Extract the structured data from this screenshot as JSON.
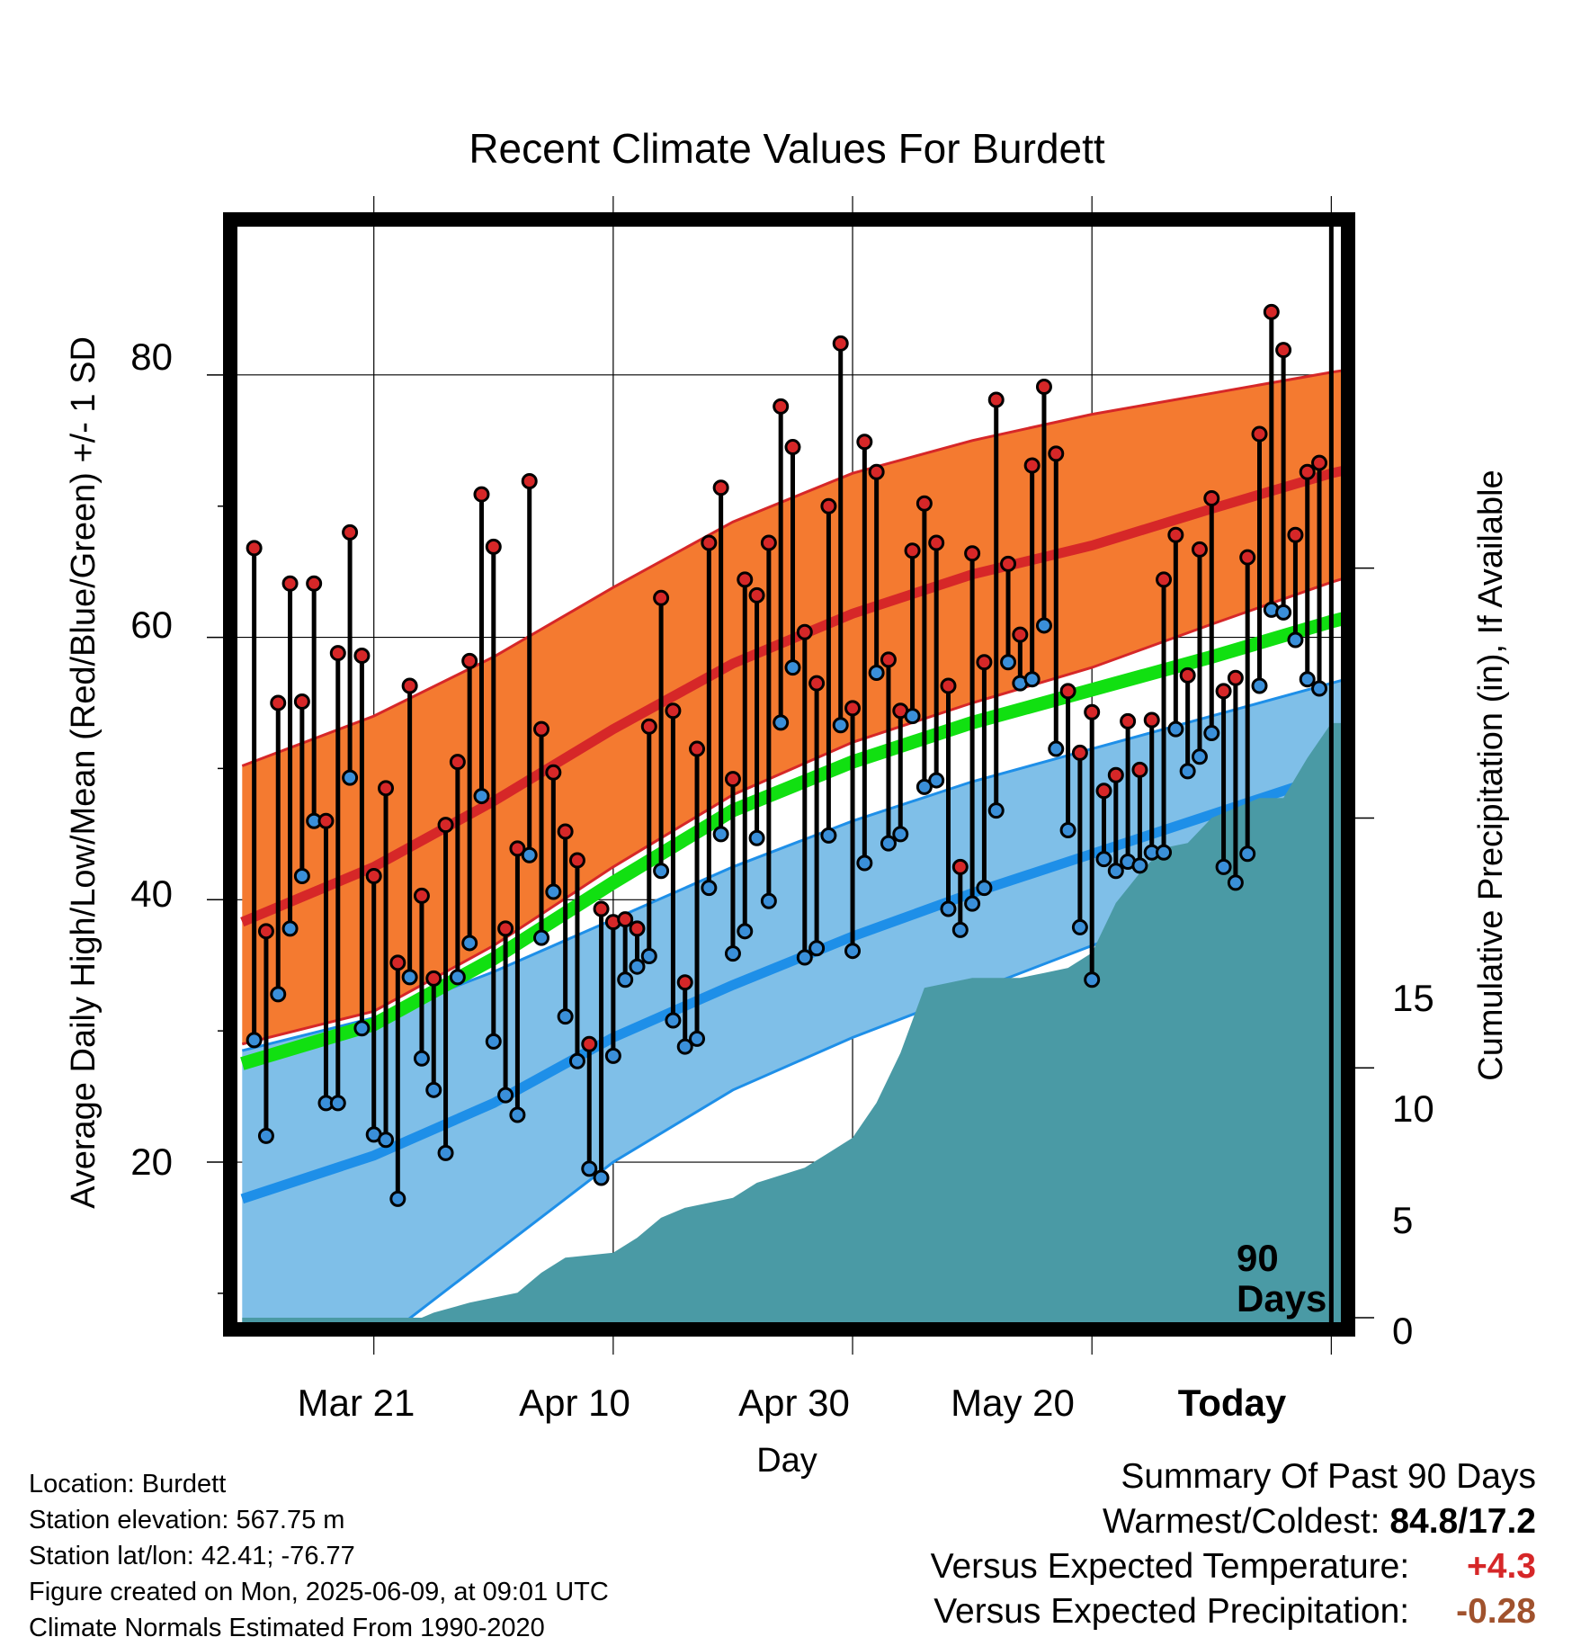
{
  "chart_data": {
    "type": "line",
    "title": "Recent Climate Values For Burdett",
    "xlabel": "Day",
    "ylabel": "Average Daily High/Low/Mean (Red/Blue/Green) +/- 1 SD",
    "y2label": "Cumulative Precipitation (in), If Available",
    "x_ticks": [
      {
        "day": 10,
        "label": "Mar 21"
      },
      {
        "day": 30,
        "label": "Apr 10"
      },
      {
        "day": 50,
        "label": "Apr 30"
      },
      {
        "day": 70,
        "label": "May 20"
      },
      {
        "day": 90,
        "label": "Today"
      }
    ],
    "y_ticks": [
      "20",
      "40",
      "60",
      "80"
    ],
    "y2_ticks": [
      "0",
      "5",
      "10",
      "15"
    ],
    "ylim": [
      7.8,
      91.3
    ],
    "y2lim": [
      0,
      18
    ],
    "xlim": [
      -1.4,
      90.8
    ],
    "today_marker_label": [
      "90",
      "Days"
    ],
    "grid": true,
    "normals": {
      "high_mean": [
        [
          -1,
          38.3
        ],
        [
          10,
          42.5
        ],
        [
          20,
          47.5
        ],
        [
          30,
          53.0
        ],
        [
          40,
          58.0
        ],
        [
          50,
          61.8
        ],
        [
          60,
          64.8
        ],
        [
          70,
          67.0
        ],
        [
          80,
          69.8
        ],
        [
          90,
          72.5
        ],
        [
          100,
          74.5
        ]
      ],
      "high_upper": [
        [
          -1,
          50.2
        ],
        [
          10,
          54.0
        ],
        [
          20,
          58.5
        ],
        [
          30,
          63.8
        ],
        [
          40,
          68.8
        ],
        [
          50,
          72.5
        ],
        [
          60,
          75.0
        ],
        [
          70,
          77.0
        ],
        [
          80,
          78.6
        ],
        [
          90,
          80.2
        ],
        [
          100,
          81.6
        ]
      ],
      "high_lower": [
        [
          -1,
          29.0
        ],
        [
          10,
          31.5
        ],
        [
          20,
          36.5
        ],
        [
          30,
          42.5
        ],
        [
          40,
          48.0
        ],
        [
          50,
          52.0
        ],
        [
          60,
          55.0
        ],
        [
          70,
          57.7
        ],
        [
          80,
          61.0
        ],
        [
          90,
          64.2
        ],
        [
          100,
          67.0
        ]
      ],
      "low_mean": [
        [
          -1,
          17.2
        ],
        [
          10,
          20.5
        ],
        [
          20,
          24.5
        ],
        [
          30,
          29.5
        ],
        [
          40,
          33.5
        ],
        [
          50,
          37.2
        ],
        [
          60,
          40.5
        ],
        [
          70,
          43.5
        ],
        [
          80,
          46.5
        ],
        [
          90,
          49.5
        ],
        [
          100,
          52.3
        ]
      ],
      "low_upper": [
        [
          -1,
          28.5
        ],
        [
          10,
          31.0
        ],
        [
          20,
          34.5
        ],
        [
          30,
          38.5
        ],
        [
          40,
          42.5
        ],
        [
          50,
          46.0
        ],
        [
          60,
          49.0
        ],
        [
          70,
          51.5
        ],
        [
          80,
          54.0
        ],
        [
          90,
          56.5
        ],
        [
          100,
          59.0
        ]
      ],
      "low_lower": [
        [
          -1,
          0.0
        ],
        [
          10,
          6.0
        ],
        [
          20,
          13.0
        ],
        [
          30,
          20.0
        ],
        [
          40,
          25.5
        ],
        [
          50,
          29.5
        ],
        [
          60,
          33.0
        ],
        [
          70,
          36.5
        ],
        [
          80,
          40.0
        ],
        [
          90,
          43.0
        ],
        [
          100,
          46.0
        ]
      ],
      "avg_mean": [
        [
          -1,
          27.5
        ],
        [
          10,
          30.5
        ],
        [
          20,
          35.5
        ],
        [
          30,
          41.3
        ],
        [
          40,
          46.8
        ],
        [
          50,
          50.5
        ],
        [
          60,
          53.5
        ],
        [
          70,
          56.0
        ],
        [
          80,
          58.5
        ],
        [
          90,
          61.2
        ],
        [
          100,
          63.5
        ]
      ]
    },
    "series": [
      {
        "name": "High",
        "color": "#d62728",
        "values": [
          66.8,
          37.6,
          55.0,
          64.1,
          55.1,
          64.1,
          46.0,
          58.8,
          68.0,
          58.6,
          41.8,
          48.5,
          35.2,
          56.3,
          40.3,
          34.0,
          45.7,
          50.5,
          58.2,
          70.9,
          66.9,
          37.8,
          43.9,
          71.9,
          53.0,
          49.7,
          45.2,
          43.0,
          29.0,
          39.3,
          38.3,
          38.5,
          37.8,
          53.2,
          63.0,
          54.4,
          33.7,
          51.5,
          67.2,
          71.4,
          49.2,
          64.4,
          63.2,
          67.2,
          77.6,
          74.5,
          60.4,
          56.5,
          70.0,
          82.4,
          54.6,
          74.9,
          72.6,
          58.3,
          54.4,
          66.6,
          70.2,
          67.2,
          56.3,
          42.5,
          66.4,
          58.1,
          78.1,
          65.6,
          60.2,
          73.1,
          79.1,
          74.0,
          55.9,
          51.2,
          54.3,
          48.3,
          49.5,
          53.6,
          49.9,
          53.7,
          64.4,
          67.8,
          57.1,
          66.7,
          70.6,
          55.9,
          56.9,
          66.1,
          75.5,
          84.8,
          81.9,
          67.8,
          72.6,
          73.3
        ]
      },
      {
        "name": "Low",
        "color": "#3a8fd9",
        "values": [
          29.3,
          22.0,
          32.8,
          37.8,
          41.8,
          46.0,
          24.5,
          24.5,
          49.3,
          30.2,
          22.1,
          21.7,
          17.2,
          34.1,
          27.9,
          25.5,
          20.7,
          34.1,
          36.7,
          47.9,
          29.2,
          25.1,
          23.6,
          43.4,
          37.1,
          40.6,
          31.1,
          27.7,
          19.5,
          18.8,
          28.1,
          33.9,
          34.9,
          35.7,
          42.2,
          30.8,
          28.8,
          29.4,
          40.9,
          45.0,
          35.9,
          37.6,
          44.7,
          39.9,
          53.5,
          57.7,
          35.6,
          36.3,
          44.9,
          53.3,
          36.1,
          42.8,
          57.3,
          44.3,
          45.0,
          54.0,
          48.6,
          49.1,
          39.3,
          37.7,
          39.7,
          40.9,
          46.8,
          58.1,
          56.5,
          56.8,
          60.9,
          51.5,
          45.3,
          37.9,
          33.9,
          43.1,
          42.2,
          42.9,
          42.6,
          43.6,
          43.6,
          53.0,
          49.8,
          50.9,
          52.7,
          42.5,
          41.3,
          43.5,
          56.3,
          62.1,
          61.9,
          59.8,
          56.8,
          56.1
        ]
      },
      {
        "name": "Cumulative Precipitation",
        "color": "#4a9aa5",
        "x": [
          -1,
          14,
          15,
          18,
          22,
          24,
          26,
          30,
          32,
          34,
          36,
          40,
          42,
          46,
          48,
          50,
          52,
          54,
          56,
          58,
          60,
          64,
          66,
          68,
          70,
          72,
          74,
          76,
          78,
          80,
          82,
          84,
          86,
          88,
          90,
          91
        ],
        "values": [
          0,
          0,
          0.1,
          0.3,
          0.5,
          0.9,
          1.2,
          1.3,
          1.6,
          2.0,
          2.2,
          2.4,
          2.7,
          3.0,
          3.3,
          3.6,
          4.3,
          5.3,
          6.6,
          6.7,
          6.8,
          6.8,
          6.9,
          7.0,
          7.3,
          8.3,
          8.9,
          9.4,
          9.5,
          10.0,
          10.2,
          10.4,
          10.4,
          11.2,
          11.9,
          11.9
        ]
      }
    ]
  },
  "info": {
    "location": "Location: Burdett",
    "elevation": "Station elevation: 567.75 m",
    "latlon": "Station lat/lon: 42.41; -76.77",
    "created": "Figure created on Mon, 2025-06-09, at 09:01 UTC",
    "normals": "Climate Normals Estimated From 1990-2020"
  },
  "summary": {
    "title": "Summary Of Past 90 Days",
    "warm_cold_label": "Warmest/Coldest:",
    "warm_cold_value": "84.8/17.2",
    "temp_label": "Versus Expected Temperature:",
    "temp_value": "+4.3",
    "temp_color": "#d62728",
    "precip_label": "Versus Expected Precipitation:",
    "precip_value": "-0.28",
    "precip_color": "#a0522d"
  }
}
